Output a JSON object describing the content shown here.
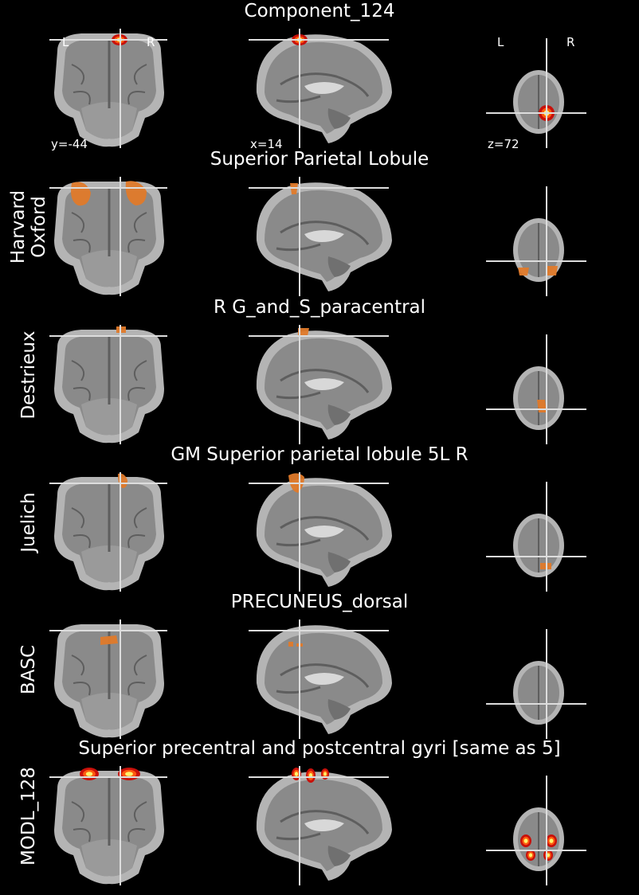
{
  "colors": {
    "background": "#000000",
    "text": "#ffffff",
    "crosshair": "#dddddd",
    "brain_outer": "#b4b4b4",
    "brain_mid": "#8a8a8a",
    "brain_dark": "#5e5e5e",
    "atlas_orange": "#e07a2a",
    "hot_red": "#c8100a",
    "hot_yellow": "#fff36a"
  },
  "icons": [
    "coronal-slice-icon",
    "sagittal-slice-icon",
    "axial-slice-icon"
  ],
  "component": {
    "title": "Component_124",
    "left_marker": "L",
    "right_marker": "R",
    "axial_left_marker": "L",
    "axial_right_marker": "R",
    "coord_y": "y=-44",
    "coord_x": "x=14",
    "coord_z": "z=72"
  },
  "rows": [
    {
      "atlas": "Harvard\nOxford",
      "title": "Superior Parietal Lobule"
    },
    {
      "atlas": "Destrieux",
      "title": "R G_and_S_paracentral"
    },
    {
      "atlas": "Juelich",
      "title": "GM Superior parietal lobule 5L R"
    },
    {
      "atlas": "BASC",
      "title": "PRECUNEUS_dorsal"
    },
    {
      "atlas": "MODL_128",
      "title": "Superior precentral and postcentral gyri [same as 5]"
    }
  ]
}
